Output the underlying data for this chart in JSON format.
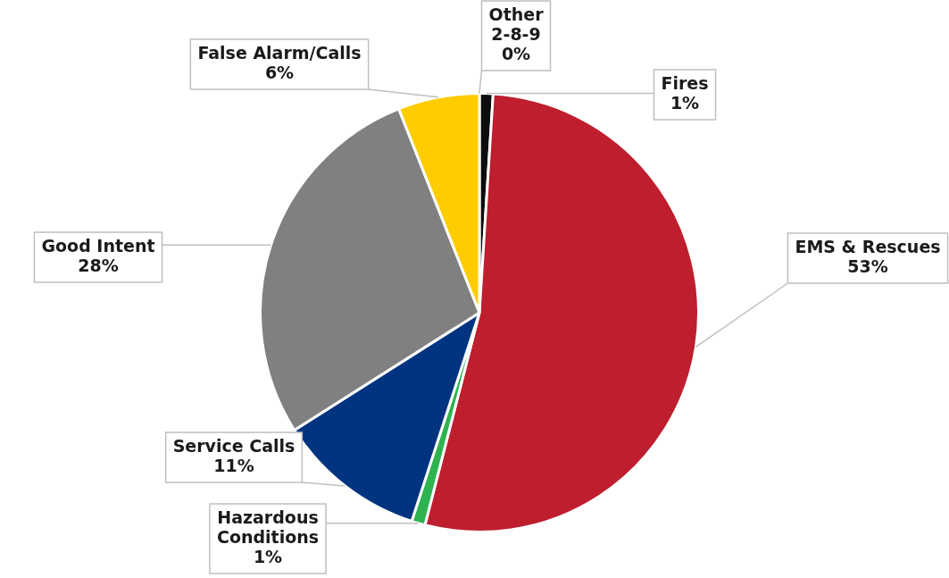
{
  "chart_data": {
    "type": "pie",
    "categories": [
      "Other 2-8-9",
      "Fires",
      "EMS & Rescues",
      "Hazardous Conditions",
      "Service Calls",
      "Good Intent",
      "False Alarm/Calls"
    ],
    "values": [
      0,
      1,
      53,
      1,
      11,
      28,
      6
    ],
    "colors": [
      "#ffffff",
      "#0d0d0d",
      "#be1e2d",
      "#2db350",
      "#003380",
      "#808080",
      "#ffcc00"
    ],
    "value_labels": [
      "0%",
      "1%",
      "53%",
      "1%",
      "11%",
      "28%",
      "6%"
    ],
    "legend": false
  }
}
